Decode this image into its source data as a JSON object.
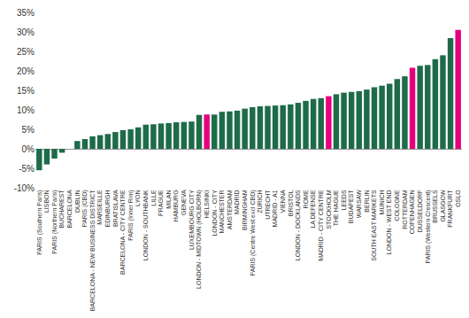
{
  "chart_data": {
    "type": "bar",
    "categories": [
      "PARIS (Southern Paris)",
      "LISBON",
      "PARIS (Northern Paris)",
      "BUCHAREST",
      "BARCELONA",
      "DUBLIN",
      "PARIS (CBD)",
      "BARCELONA - NEW BUSINESS DISTRICT",
      "MARSEILLE",
      "EDINBURGH",
      "BRATISLAVA",
      "BARCELONA - CITY CENTRE",
      "PARIS (Inner Rim)",
      "LYON",
      "LONDON - SOUTHBANK",
      "LILLE",
      "PRAGUE",
      "MILAN",
      "HAMBURG",
      "GENEVA",
      "LUXEMBOURG CITY",
      "LONDON - MIDTOWN (HOLBORN)",
      "HELSINKI",
      "LONDON - CITY",
      "MANCHESTER",
      "AMSTERDAM",
      "MADRID",
      "BIRMINGHAM",
      "PARIS (Centre West excl CBD)",
      "ZURICH",
      "UTRECHT",
      "MADRID - A1",
      "VIENNA",
      "BRISTOL",
      "LONDON - DOCKLANDS",
      "ROME",
      "LA DEFENSE",
      "MADRID - CITY CENTRE",
      "STOCKHOLM",
      "THE HAGUE",
      "LEEDS",
      "BUDAPEST",
      "WARSAW",
      "BERLIN",
      "SOUTH EAST MARKETS",
      "MUNICH",
      "LONDON - WEST END",
      "COLOGNE",
      "ROTTERDAM",
      "COPENHAGEN",
      "DUSSELDORF",
      "PARIS (Western Crescent)",
      "BRUSSELS",
      "GLASGOW",
      "FRANKFURT",
      "OSLO"
    ],
    "values": [
      -5.5,
      -4,
      -2.5,
      -1,
      0,
      2,
      2.5,
      3.2,
      3.5,
      3.8,
      4.3,
      4.8,
      5.0,
      5.5,
      6.2,
      6.3,
      6.5,
      6.6,
      6.8,
      6.9,
      7.0,
      8.7,
      8.8,
      8.8,
      9.5,
      9.6,
      9.8,
      10.3,
      10.7,
      10.9,
      11.0,
      11.1,
      11.2,
      11.4,
      11.8,
      12.3,
      12.8,
      13.0,
      13.5,
      14.0,
      14.4,
      14.6,
      14.8,
      15.2,
      15.8,
      16.2,
      16.7,
      17.9,
      18.6,
      20.8,
      21.3,
      21.5,
      23.0,
      24.0,
      28.4,
      30.5
    ],
    "colors": [
      "#1e6b4a",
      "#1e6b4a",
      "#1e6b4a",
      "#1e6b4a",
      "#1e6b4a",
      "#1e6b4a",
      "#1e6b4a",
      "#1e6b4a",
      "#1e6b4a",
      "#1e6b4a",
      "#1e6b4a",
      "#1e6b4a",
      "#1e6b4a",
      "#1e6b4a",
      "#1e6b4a",
      "#1e6b4a",
      "#1e6b4a",
      "#1e6b4a",
      "#1e6b4a",
      "#1e6b4a",
      "#1e6b4a",
      "#1e6b4a",
      "#e5007d",
      "#1e6b4a",
      "#1e6b4a",
      "#1e6b4a",
      "#1e6b4a",
      "#1e6b4a",
      "#1e6b4a",
      "#1e6b4a",
      "#1e6b4a",
      "#1e6b4a",
      "#1e6b4a",
      "#1e6b4a",
      "#1e6b4a",
      "#1e6b4a",
      "#1e6b4a",
      "#1e6b4a",
      "#e5007d",
      "#1e6b4a",
      "#1e6b4a",
      "#1e6b4a",
      "#1e6b4a",
      "#1e6b4a",
      "#1e6b4a",
      "#1e6b4a",
      "#1e6b4a",
      "#1e6b4a",
      "#1e6b4a",
      "#e5007d",
      "#1e6b4a",
      "#1e6b4a",
      "#1e6b4a",
      "#1e6b4a",
      "#1e6b4a",
      "#e5007d"
    ],
    "ylim": [
      -10,
      35
    ],
    "yticks": [
      {
        "value": -10,
        "label": "-10%"
      },
      {
        "value": -5,
        "label": "-5%"
      },
      {
        "value": 0,
        "label": "0%"
      },
      {
        "value": 5,
        "label": "5%"
      },
      {
        "value": 10,
        "label": "10%"
      },
      {
        "value": 15,
        "label": "15%"
      },
      {
        "value": 20,
        "label": "20%"
      },
      {
        "value": 25,
        "label": "25%"
      },
      {
        "value": 30,
        "label": "30%"
      },
      {
        "value": 35,
        "label": "35%"
      }
    ],
    "grid": false
  }
}
